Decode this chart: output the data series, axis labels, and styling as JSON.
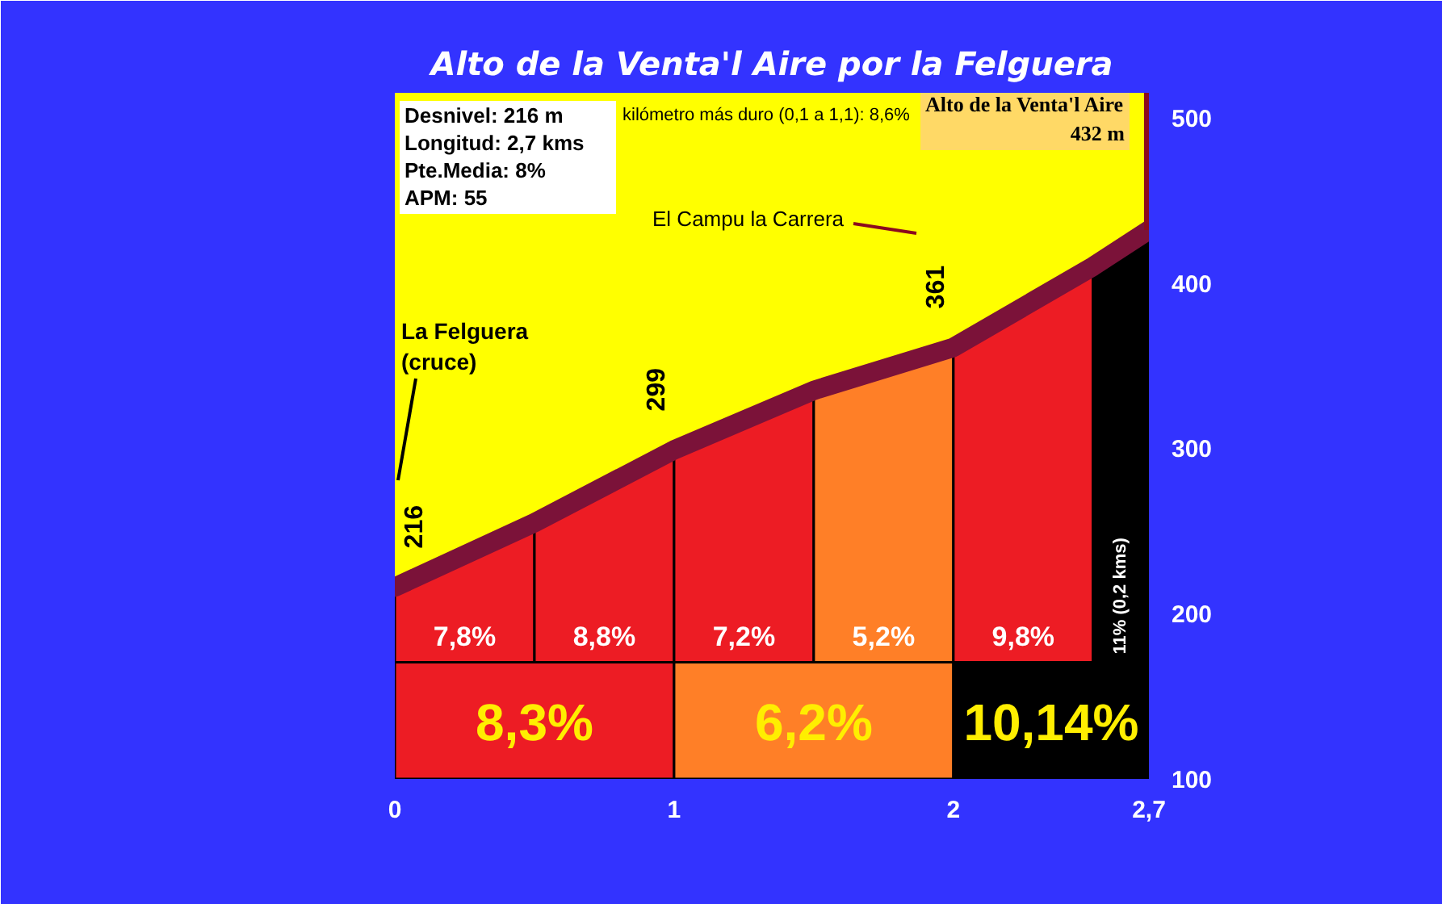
{
  "chart_data": {
    "type": "area",
    "title": "Alto de la Venta'l Aire por la Felguera",
    "xlim": [
      0,
      2.7
    ],
    "ylim": [
      100,
      515
    ],
    "xticks": [
      0,
      1,
      2,
      {
        "value": 2.7,
        "label": "2,7"
      }
    ],
    "yticks": [
      100,
      200,
      300,
      400,
      500
    ],
    "series": [
      {
        "name": "7,8%",
        "x": [
          0,
          0.5
        ],
        "values": [
          216,
          255
        ],
        "color": "#ed1c24"
      },
      {
        "name": "8,8%",
        "x": [
          0.5,
          1
        ],
        "values": [
          255,
          299
        ],
        "color": "#ed1c24"
      },
      {
        "name": "7,2%",
        "x": [
          1,
          1.5
        ],
        "values": [
          299,
          335
        ],
        "color": "#ed1c24"
      },
      {
        "name": "5,2%",
        "x": [
          1.5,
          2
        ],
        "values": [
          335,
          361
        ],
        "color": "#ff7f27"
      },
      {
        "name": "9,8%",
        "x": [
          2,
          2.5
        ],
        "values": [
          361,
          410
        ],
        "color": "#ed1c24"
      },
      {
        "name": "11% (0,2 kms)",
        "x": [
          2.5,
          2.7
        ],
        "values": [
          410,
          432
        ],
        "color": "#000000"
      },
      {
        "type": "line",
        "x": [
          0,
          0.5,
          1,
          1.5,
          2,
          2.5,
          2.7
        ],
        "values": [
          216,
          255,
          299,
          335,
          361,
          410,
          432
        ],
        "color": "#7b1239",
        "value_labels": [
          "216",
          null,
          "299",
          null,
          "361",
          null,
          null
        ]
      }
    ],
    "bands": [
      {
        "axis": "x",
        "from": 0,
        "to": 1,
        "label": "8,3%",
        "color": "#ed1c24"
      },
      {
        "axis": "x",
        "from": 1,
        "to": 2,
        "label": "6,2%",
        "color": "#ff7f27"
      },
      {
        "axis": "x",
        "from": 2,
        "to": 2.7,
        "label": "10,14%",
        "color": "#000000"
      }
    ],
    "annotations": [
      "Desnivel: 216 m",
      "Longitud: 2,7 kms",
      "Pte.Media: 8%",
      "APM: 55",
      "kilómetro más duro (0,1 a 1,1): 8,6%",
      {
        "text": "Alto de la Venta'l Aire\n432 m",
        "x": 2.7,
        "y": 432
      },
      "La Felguera\n(cruce)",
      "El Campu la Carrera"
    ]
  }
}
